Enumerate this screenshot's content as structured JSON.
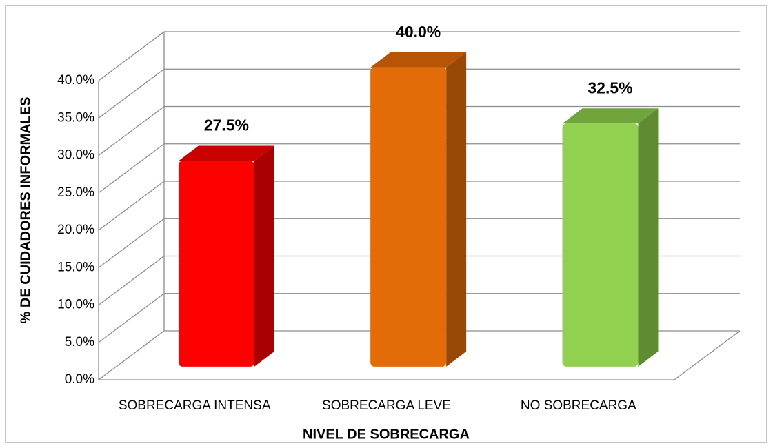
{
  "chart_data": {
    "type": "bar3d",
    "categories": [
      "SOBRECARGA INTENSA",
      "SOBRECARGA LEVE",
      "NO SOBRECARGA"
    ],
    "values": [
      27.5,
      40.0,
      32.5
    ],
    "value_labels": [
      "27.5%",
      "40.0%",
      "32.5%"
    ],
    "colors": [
      "#ff0000",
      "#e36c09",
      "#92d050"
    ],
    "side_colors": [
      "#a80000",
      "#984807",
      "#5f8c32"
    ],
    "top_colors": [
      "#c80000",
      "#b85505",
      "#6fa53a"
    ],
    "ylim": [
      0,
      40
    ],
    "yticks": [
      {
        "value": 0,
        "label": "0.0%"
      },
      {
        "value": 5,
        "label": "5.0%"
      },
      {
        "value": 10,
        "label": "10.0%"
      },
      {
        "value": 15,
        "label": "15.0%"
      },
      {
        "value": 20,
        "label": "20.0%"
      },
      {
        "value": 25,
        "label": "25.0%"
      },
      {
        "value": 30,
        "label": "30.0%"
      },
      {
        "value": 35,
        "label": "35.0%"
      },
      {
        "value": 40,
        "label": "40.0%"
      }
    ],
    "ylabel": "% DE CUIDADORES INFORMALES",
    "xlabel": "NIVEL DE SOBRECARGA",
    "grid": true
  }
}
